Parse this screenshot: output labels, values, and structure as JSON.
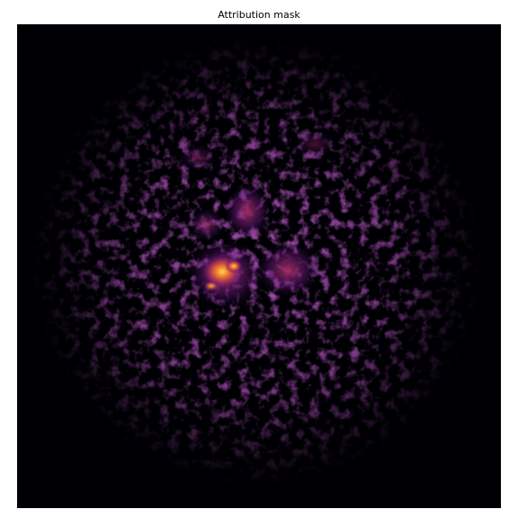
{
  "title": "Attribution mask"
}
